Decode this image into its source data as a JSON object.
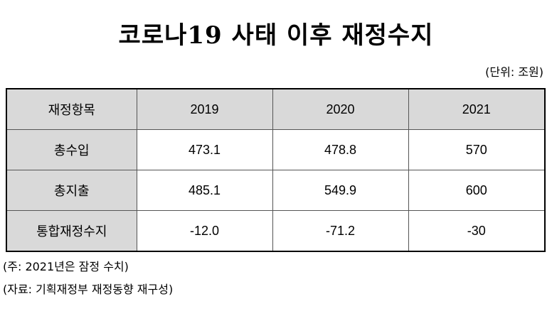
{
  "title": "코로나19 사태 이후 재정수지",
  "unit": "(단위: 조원)",
  "table": {
    "header": [
      "재정항목",
      "2019",
      "2020",
      "2021"
    ],
    "rows": [
      {
        "label": "총수입",
        "values": [
          "473.1",
          "478.8",
          "570"
        ]
      },
      {
        "label": "총지출",
        "values": [
          "485.1",
          "549.9",
          "600"
        ]
      },
      {
        "label": "통합재정수지",
        "values": [
          "-12.0",
          "-71.2",
          "-30"
        ]
      }
    ]
  },
  "notes": {
    "note1": "(주: 2021년은 잠정 수치)",
    "note2": "(자료: 기획재정부 재정동향 재구성)"
  },
  "colors": {
    "header_fill": "#d9d9d9",
    "border": "#000000"
  }
}
